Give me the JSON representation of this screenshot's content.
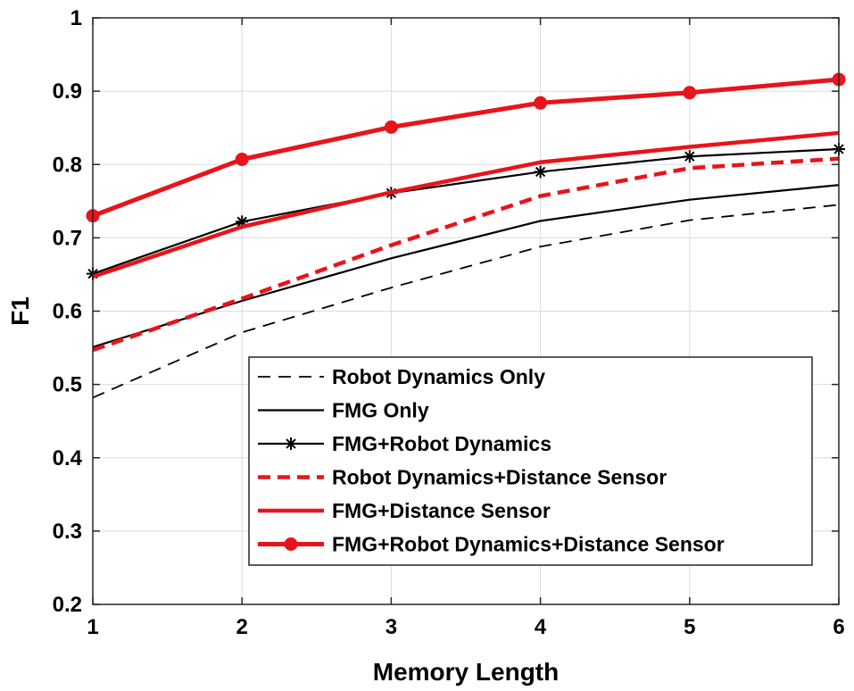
{
  "chart_data": {
    "type": "line",
    "title": "",
    "xlabel": "Memory Length",
    "ylabel": "F1",
    "xlim": [
      1,
      6
    ],
    "ylim": [
      0.2,
      1.0
    ],
    "x": [
      1,
      2,
      3,
      4,
      5,
      6
    ],
    "x_ticks": [
      "1",
      "2",
      "3",
      "4",
      "5",
      "6"
    ],
    "y_ticks": [
      "0.2",
      "0.3",
      "0.4",
      "0.5",
      "0.6",
      "0.7",
      "0.8",
      "0.9",
      "1"
    ],
    "y_tick_values": [
      0.2,
      0.3,
      0.4,
      0.5,
      0.6,
      0.7,
      0.8,
      0.9,
      1.0
    ],
    "grid": true,
    "legend_position": "bottom-right",
    "series": [
      {
        "name": "Robot Dynamics Only",
        "values": [
          0.482,
          0.571,
          0.632,
          0.688,
          0.724,
          0.745
        ],
        "color": "#000000",
        "style": "dashed",
        "marker": "none"
      },
      {
        "name": "FMG Only",
        "values": [
          0.551,
          0.614,
          0.672,
          0.723,
          0.752,
          0.772
        ],
        "color": "#000000",
        "style": "solid",
        "marker": "none"
      },
      {
        "name": "FMG+Robot Dynamics",
        "values": [
          0.651,
          0.722,
          0.761,
          0.79,
          0.811,
          0.821
        ],
        "color": "#000000",
        "style": "solid",
        "marker": "star"
      },
      {
        "name": "Robot Dynamics+Distance Sensor",
        "values": [
          0.547,
          0.617,
          0.69,
          0.757,
          0.795,
          0.808
        ],
        "color": "#e8141b",
        "style": "dashed-thick",
        "marker": "none"
      },
      {
        "name": "FMG+Distance Sensor",
        "values": [
          0.647,
          0.715,
          0.762,
          0.803,
          0.824,
          0.843
        ],
        "color": "#e8141b",
        "style": "solid-thick",
        "marker": "none"
      },
      {
        "name": "FMG+Robot Dynamics+Distance Sensor",
        "values": [
          0.73,
          0.807,
          0.851,
          0.884,
          0.898,
          0.916
        ],
        "color": "#e8141b",
        "style": "solid-thicker",
        "marker": "circle"
      }
    ]
  }
}
